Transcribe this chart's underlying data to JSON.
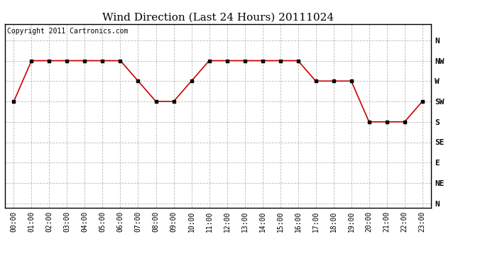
{
  "title": "Wind Direction (Last 24 Hours) 20111024",
  "copyright_text": "Copyright 2011 Cartronics.com",
  "x_labels": [
    "00:00",
    "01:00",
    "02:00",
    "03:00",
    "04:00",
    "05:00",
    "06:00",
    "07:00",
    "08:00",
    "09:00",
    "10:00",
    "11:00",
    "12:00",
    "13:00",
    "14:00",
    "15:00",
    "16:00",
    "17:00",
    "18:00",
    "19:00",
    "20:00",
    "21:00",
    "22:00",
    "23:00"
  ],
  "y_labels": [
    "N",
    "NW",
    "W",
    "SW",
    "S",
    "SE",
    "E",
    "NE",
    "N"
  ],
  "y_values": [
    8,
    7,
    6,
    5,
    4,
    3,
    2,
    1,
    0
  ],
  "wind_data": [
    5,
    7,
    7,
    7,
    7,
    7,
    7,
    6,
    5,
    5,
    6,
    7,
    7,
    7,
    7,
    7,
    7,
    6,
    6,
    6,
    4,
    4,
    4,
    5
  ],
  "line_color": "#cc0000",
  "marker": "s",
  "marker_size": 3,
  "marker_color": "#000000",
  "background_color": "#ffffff",
  "plot_bg_color": "#ffffff",
  "grid_color": "#bbbbbb",
  "title_fontsize": 11,
  "copyright_fontsize": 7,
  "tick_fontsize": 7,
  "ytick_fontsize": 8
}
